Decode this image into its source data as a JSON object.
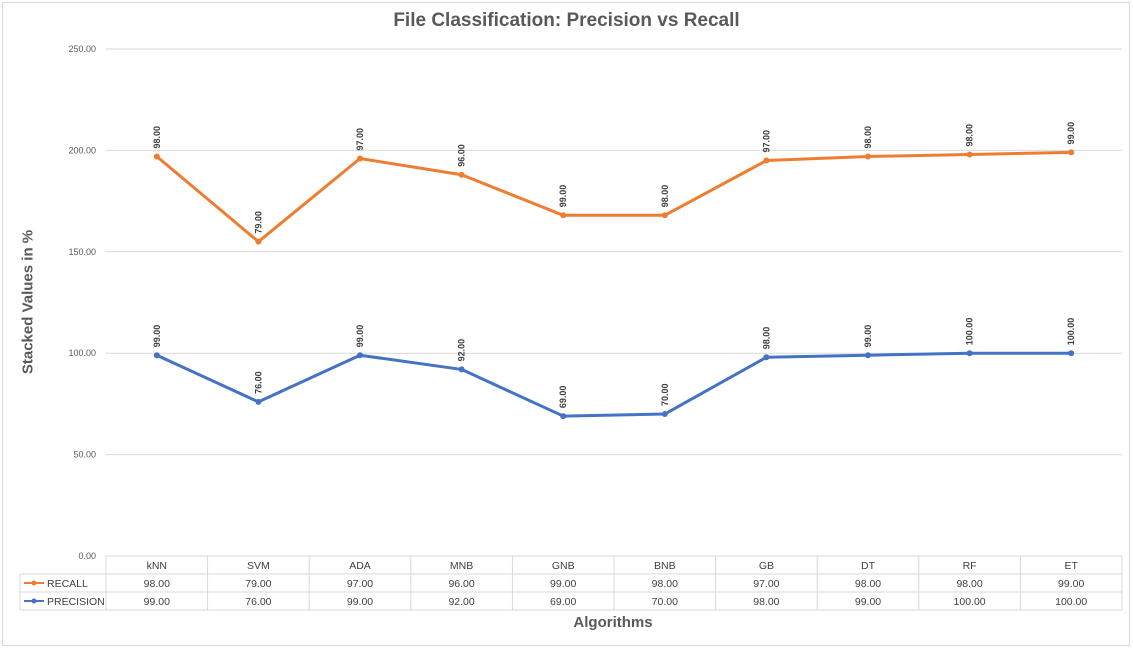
{
  "chart_data": {
    "type": "line",
    "title": "File Classification: Precision vs Recall",
    "xlabel": "Algorithms",
    "ylabel": "Stacked Values in %",
    "stacked": true,
    "categories": [
      "kNN",
      "SVM",
      "ADA",
      "MNB",
      "GNB",
      "BNB",
      "GB",
      "DT",
      "RF",
      "ET"
    ],
    "series": [
      {
        "name": "RECALL",
        "color": "#ED7D31",
        "values": [
          98.0,
          79.0,
          97.0,
          96.0,
          99.0,
          98.0,
          97.0,
          98.0,
          98.0,
          99.0
        ]
      },
      {
        "name": "PRECISION",
        "color": "#4472C4",
        "values": [
          99.0,
          76.0,
          99.0,
          92.0,
          69.0,
          70.0,
          98.0,
          99.0,
          100.0,
          100.0
        ]
      }
    ],
    "ylim": [
      0,
      250
    ],
    "yticks": [
      "0.00",
      "50.00",
      "100.00",
      "150.00",
      "200.00",
      "250.00"
    ],
    "grid": true,
    "legend": "data-table"
  }
}
